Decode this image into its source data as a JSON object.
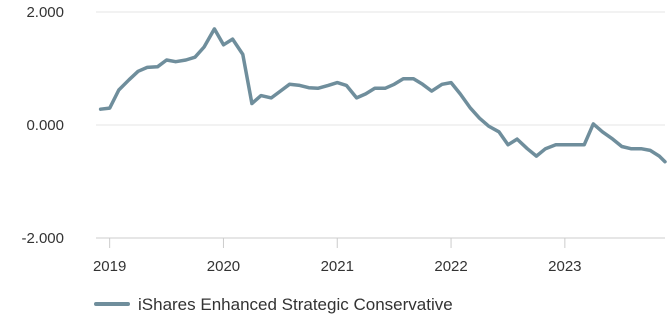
{
  "chart_data": {
    "type": "line",
    "title": "",
    "xlabel": "",
    "ylabel": "",
    "ylim": [
      -2,
      2
    ],
    "yticks": [
      "2.000",
      "0.000",
      "-2.000"
    ],
    "yticks_values": [
      2,
      0,
      -2
    ],
    "xlim": [
      2018.88,
      2023.88
    ],
    "xticks": [
      "2019",
      "2020",
      "2021",
      "2022",
      "2023"
    ],
    "xticks_values": [
      2019,
      2020,
      2021,
      2022,
      2023
    ],
    "grid": "horizontal",
    "legend_position": "bottom-left",
    "series": [
      {
        "name": "iShares Enhanced Strategic Conservative",
        "color": "#6f8e9c",
        "x": [
          2018.92,
          2019.0,
          2019.08,
          2019.17,
          2019.25,
          2019.33,
          2019.42,
          2019.5,
          2019.58,
          2019.67,
          2019.75,
          2019.83,
          2019.92,
          2020.0,
          2020.08,
          2020.17,
          2020.25,
          2020.33,
          2020.42,
          2020.5,
          2020.58,
          2020.67,
          2020.75,
          2020.83,
          2020.92,
          2021.0,
          2021.08,
          2021.17,
          2021.25,
          2021.33,
          2021.42,
          2021.5,
          2021.58,
          2021.67,
          2021.75,
          2021.83,
          2021.92,
          2022.0,
          2022.08,
          2022.17,
          2022.25,
          2022.33,
          2022.42,
          2022.5,
          2022.58,
          2022.67,
          2022.75,
          2022.83,
          2022.92,
          2023.0,
          2023.08,
          2023.17,
          2023.25,
          2023.33,
          2023.42,
          2023.5,
          2023.58,
          2023.67,
          2023.75,
          2023.83,
          2023.88
        ],
        "y": [
          0.28,
          0.3,
          0.62,
          0.8,
          0.95,
          1.02,
          1.03,
          1.15,
          1.12,
          1.15,
          1.2,
          1.38,
          1.7,
          1.42,
          1.52,
          1.25,
          0.38,
          0.52,
          0.48,
          0.6,
          0.72,
          0.7,
          0.66,
          0.65,
          0.7,
          0.75,
          0.7,
          0.48,
          0.55,
          0.65,
          0.65,
          0.72,
          0.82,
          0.82,
          0.72,
          0.6,
          0.72,
          0.75,
          0.55,
          0.3,
          0.12,
          -0.02,
          -0.12,
          -0.35,
          -0.25,
          -0.42,
          -0.55,
          -0.42,
          -0.35,
          -0.35,
          -0.35,
          -0.35,
          0.02,
          -0.12,
          -0.25,
          -0.38,
          -0.42,
          -0.42,
          -0.45,
          -0.55,
          -0.65
        ]
      }
    ]
  }
}
